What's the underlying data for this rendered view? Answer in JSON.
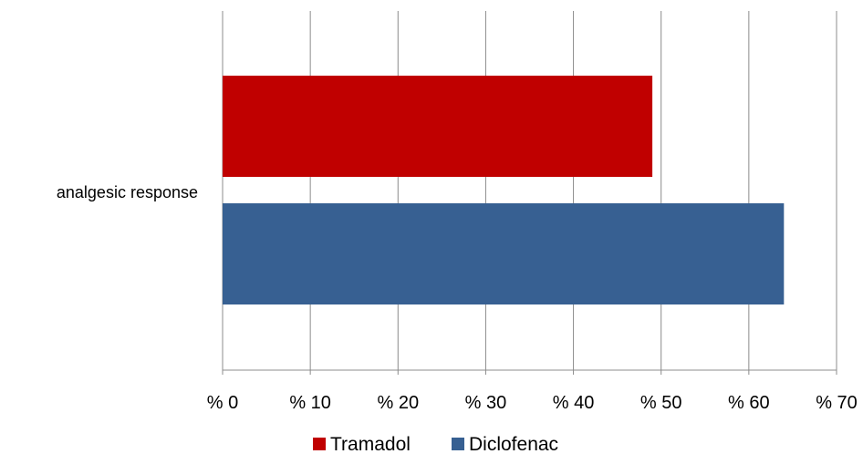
{
  "chart_data": {
    "type": "bar",
    "orientation": "horizontal",
    "categories": [
      "analgesic response"
    ],
    "series": [
      {
        "name": "Tramadol",
        "values": [
          49
        ],
        "color": "#c00000"
      },
      {
        "name": "Diclofenac",
        "values": [
          64
        ],
        "color": "#376092"
      }
    ],
    "xlim": [
      0,
      70
    ],
    "xticks": [
      0,
      10,
      20,
      30,
      40,
      50,
      60,
      70
    ],
    "xtick_labels": [
      "% 0",
      "% 10",
      "% 20",
      "% 30",
      "% 40",
      "% 50",
      "% 60",
      "% 70"
    ],
    "title": "",
    "xlabel": "",
    "ylabel": "",
    "grid": "vertical",
    "legend": "bottom"
  },
  "colors": {
    "gridline": "#8c8c8c",
    "axis": "#8c8c8c"
  }
}
